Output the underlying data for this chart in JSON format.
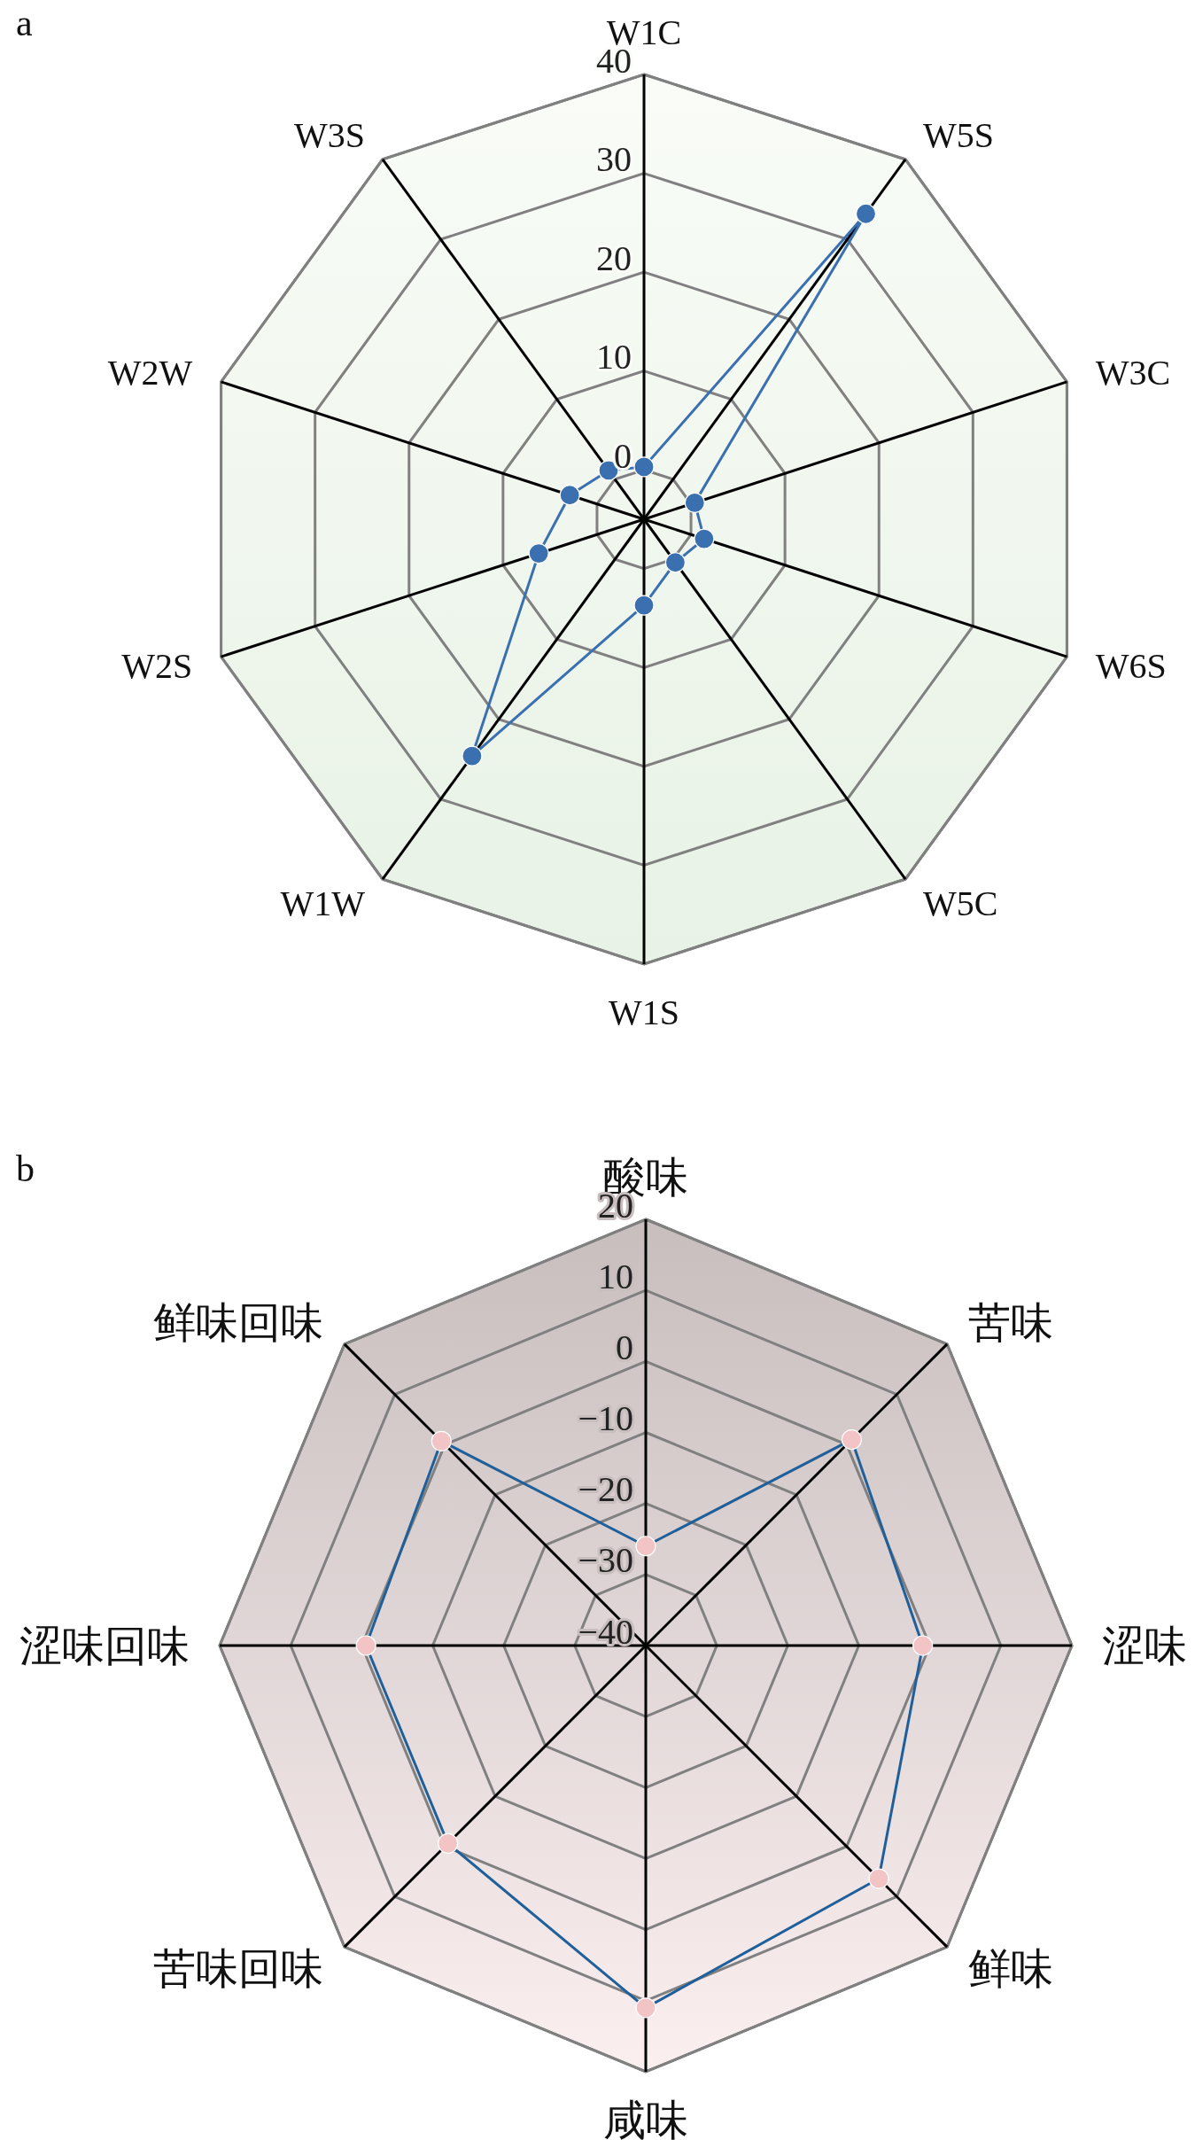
{
  "chart_data": [
    {
      "type": "radar",
      "title": "a",
      "categories": [
        "W1C",
        "W5S",
        "W3C",
        "W6S",
        "W5C",
        "W1S",
        "W1W",
        "W2S",
        "W2W",
        "W3S"
      ],
      "series": [
        {
          "color": "#3a6fb0",
          "values": [
            0.3,
            33.2,
            0.4,
            1.4,
            0.4,
            3.7,
            24.6,
            6.2,
            2.9,
            1.1
          ]
        }
      ],
      "ylim": [
        -5,
        40
      ],
      "yticks": [
        0,
        10,
        20,
        30,
        40
      ],
      "grid": true,
      "marker": "circle"
    },
    {
      "type": "radar",
      "title": "b",
      "categories": [
        "酸味",
        "苦味",
        "涩味",
        "鲜味",
        "咸味",
        "苦味回味",
        "涩味回味",
        "鲜味回味"
      ],
      "series": [
        {
          "color": "#1f5f9a",
          "colors": [
            "#f2c4c6",
            "#f2c4c6",
            "#f2c4c6",
            "#f2c4c6",
            "#f2c4c6",
            "#f2c4c6",
            "#f2c4c6",
            "#f2c4c6"
          ],
          "values": [
            -26,
            1,
            -1,
            6.4,
            11,
            -0.6,
            -0.6,
            0.7
          ]
        }
      ],
      "ylim": [
        -40,
        20
      ],
      "yticks": [
        -40,
        -30,
        -20,
        -10,
        0,
        10,
        20
      ],
      "grid": true,
      "marker": "circle"
    }
  ]
}
